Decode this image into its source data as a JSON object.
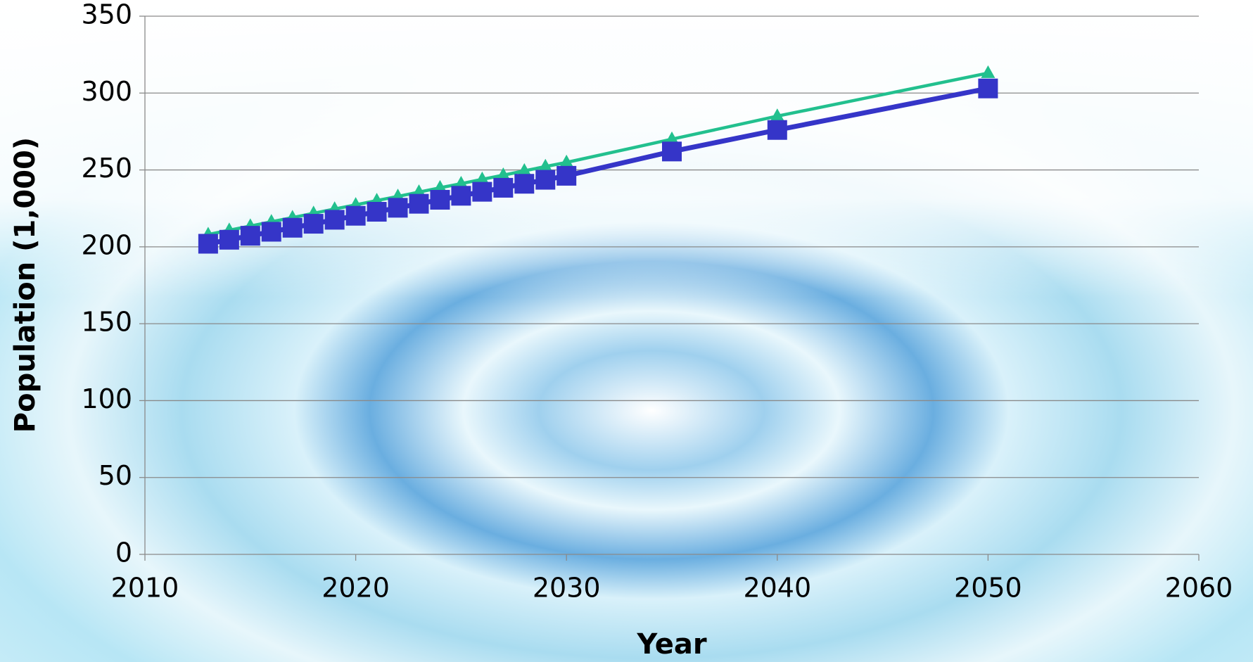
{
  "chart_data": {
    "type": "line",
    "x_label": "Year",
    "y_label": "Population (1,000)",
    "x": [
      2013,
      2014,
      2015,
      2016,
      2017,
      2018,
      2019,
      2020,
      2021,
      2022,
      2023,
      2024,
      2025,
      2026,
      2027,
      2028,
      2029,
      2030,
      2035,
      2040,
      2050
    ],
    "series": [
      {
        "color": "#22c08e",
        "marker": "triangle",
        "values": [
          208,
          210.8,
          213.5,
          216.3,
          219,
          221.8,
          224.6,
          227.3,
          230.1,
          232.8,
          235.6,
          238.4,
          241.1,
          243.9,
          246.6,
          249.4,
          252.2,
          254.9,
          270,
          285,
          313
        ]
      },
      {
        "color": "#3535c8",
        "marker": "square",
        "values": [
          202,
          204.6,
          207.2,
          209.8,
          212.4,
          215,
          217.6,
          220.2,
          222.8,
          225.4,
          228,
          230.6,
          233.2,
          235.8,
          238.4,
          241,
          243.6,
          246.2,
          262,
          276,
          303
        ]
      }
    ],
    "xlim": [
      2010,
      2060
    ],
    "xticks": [
      2010,
      2020,
      2030,
      2040,
      2050,
      2060
    ],
    "ylim": [
      0,
      350
    ],
    "yticks": [
      0,
      50,
      100,
      150,
      200,
      250,
      300,
      350
    ],
    "grid": true
  }
}
